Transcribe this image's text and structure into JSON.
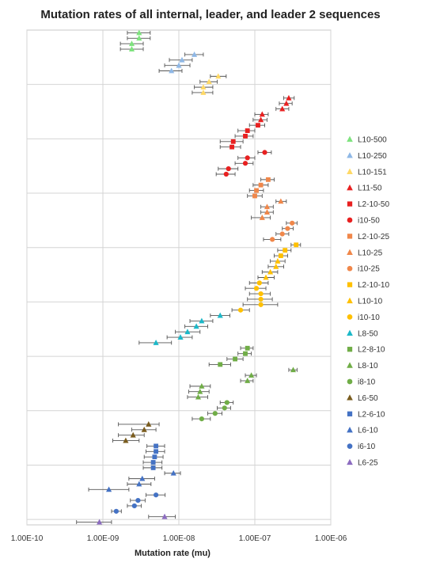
{
  "chart_data": {
    "type": "scatter",
    "title": "Mutation rates of all internal, leader, and leader 2 sequences",
    "xlabel": "Mutation rate (mu)",
    "ylabel": "",
    "x_scale": "log",
    "xlim": [
      1e-10,
      1e-06
    ],
    "x_tick_labels": [
      "1.00E-10",
      "1.00E-09",
      "1.00E-08",
      "1.00E-07",
      "1.00E-06"
    ],
    "grid": true,
    "legend": "right",
    "series": [
      {
        "name": "L10-500",
        "color": "#7ee37e",
        "marker": "triangle",
        "points": [
          {
            "x": 3e-09,
            "lo": 2.1e-09,
            "hi": 4.2e-09
          },
          {
            "x": 3e-09,
            "lo": 2.1e-09,
            "hi": 4.2e-09
          },
          {
            "x": 2.4e-09,
            "lo": 1.7e-09,
            "hi": 3.4e-09
          },
          {
            "x": 2.4e-09,
            "lo": 1.7e-09,
            "hi": 3.4e-09
          }
        ]
      },
      {
        "name": "L10-250",
        "color": "#8fb8e6",
        "marker": "triangle",
        "points": [
          {
            "x": 1.6e-08,
            "lo": 1.2e-08,
            "hi": 2.1e-08
          },
          {
            "x": 1.1e-08,
            "lo": 7.5e-09,
            "hi": 1.5e-08
          },
          {
            "x": 1e-08,
            "lo": 6.5e-09,
            "hi": 1.4e-08
          },
          {
            "x": 8e-09,
            "lo": 5.5e-09,
            "hi": 1.1e-08
          }
        ]
      },
      {
        "name": "L10-151",
        "color": "#ffd966",
        "marker": "triangle",
        "points": [
          {
            "x": 3.3e-08,
            "lo": 2.6e-08,
            "hi": 4.2e-08
          },
          {
            "x": 2.5e-08,
            "lo": 1.9e-08,
            "hi": 3.2e-08
          },
          {
            "x": 2.1e-08,
            "lo": 1.6e-08,
            "hi": 2.8e-08
          },
          {
            "x": 2.1e-08,
            "lo": 1.5e-08,
            "hi": 2.8e-08
          }
        ]
      },
      {
        "name": "L11-50",
        "color": "#e82020",
        "marker": "triangle",
        "points": [
          {
            "x": 2.8e-07,
            "lo": 2.4e-07,
            "hi": 3.3e-07
          },
          {
            "x": 2.6e-07,
            "lo": 2.1e-07,
            "hi": 3.1e-07
          },
          {
            "x": 2.3e-07,
            "lo": 1.9e-07,
            "hi": 2.8e-07
          },
          {
            "x": 1.25e-07,
            "lo": 1e-07,
            "hi": 1.5e-07
          },
          {
            "x": 1.2e-07,
            "lo": 9.5e-08,
            "hi": 1.45e-07
          }
        ]
      },
      {
        "name": "L2-10-50",
        "color": "#e82020",
        "marker": "square",
        "points": [
          {
            "x": 1.1e-07,
            "lo": 8.5e-08,
            "hi": 1.35e-07
          },
          {
            "x": 8e-08,
            "lo": 6e-08,
            "hi": 1e-07
          },
          {
            "x": 7.5e-08,
            "lo": 5.5e-08,
            "hi": 9.5e-08
          },
          {
            "x": 5.2e-08,
            "lo": 3.5e-08,
            "hi": 7e-08
          },
          {
            "x": 5e-08,
            "lo": 3.5e-08,
            "hi": 6.5e-08
          }
        ]
      },
      {
        "name": "i10-50",
        "color": "#e82020",
        "marker": "circle",
        "points": [
          {
            "x": 1.35e-07,
            "lo": 1.1e-07,
            "hi": 1.65e-07
          },
          {
            "x": 8e-08,
            "lo": 6e-08,
            "hi": 1e-07
          },
          {
            "x": 7.5e-08,
            "lo": 5.5e-08,
            "hi": 9.5e-08
          },
          {
            "x": 4.5e-08,
            "lo": 3.3e-08,
            "hi": 6e-08
          },
          {
            "x": 4.2e-08,
            "lo": 3.1e-08,
            "hi": 5.5e-08
          }
        ]
      },
      {
        "name": "L2-10-25",
        "color": "#f0874a",
        "marker": "square",
        "points": [
          {
            "x": 1.5e-07,
            "lo": 1.2e-07,
            "hi": 1.8e-07
          },
          {
            "x": 1.2e-07,
            "lo": 9.5e-08,
            "hi": 1.5e-07
          },
          {
            "x": 1.05e-07,
            "lo": 8.5e-08,
            "hi": 1.3e-07
          },
          {
            "x": 1e-07,
            "lo": 8e-08,
            "hi": 1.25e-07
          }
        ]
      },
      {
        "name": "L10-25",
        "color": "#f0874a",
        "marker": "triangle",
        "points": [
          {
            "x": 2.2e-07,
            "lo": 1.9e-07,
            "hi": 2.6e-07
          },
          {
            "x": 1.45e-07,
            "lo": 1.2e-07,
            "hi": 1.75e-07
          },
          {
            "x": 1.45e-07,
            "lo": 1.2e-07,
            "hi": 1.75e-07
          },
          {
            "x": 1.25e-07,
            "lo": 9e-08,
            "hi": 1.6e-07
          }
        ]
      },
      {
        "name": "i10-25",
        "color": "#f0874a",
        "marker": "circle",
        "points": [
          {
            "x": 3.1e-07,
            "lo": 2.6e-07,
            "hi": 3.6e-07
          },
          {
            "x": 2.7e-07,
            "lo": 2.3e-07,
            "hi": 3.2e-07
          },
          {
            "x": 2.3e-07,
            "lo": 1.9e-07,
            "hi": 2.8e-07
          },
          {
            "x": 1.7e-07,
            "lo": 1.3e-07,
            "hi": 2.2e-07
          }
        ]
      },
      {
        "name": "L2-10-10",
        "color": "#ffc000",
        "marker": "square",
        "points": [
          {
            "x": 3.5e-07,
            "lo": 3e-07,
            "hi": 4e-07
          },
          {
            "x": 2.5e-07,
            "lo": 2e-07,
            "hi": 3e-07
          },
          {
            "x": 2.2e-07,
            "lo": 1.8e-07,
            "hi": 2.7e-07
          }
        ]
      },
      {
        "name": "L10-10",
        "color": "#ffc000",
        "marker": "triangle",
        "points": [
          {
            "x": 2e-07,
            "lo": 1.6e-07,
            "hi": 2.5e-07
          },
          {
            "x": 1.9e-07,
            "lo": 1.5e-07,
            "hi": 2.4e-07
          },
          {
            "x": 1.6e-07,
            "lo": 1.25e-07,
            "hi": 2e-07
          },
          {
            "x": 1.4e-07,
            "lo": 1.1e-07,
            "hi": 1.8e-07
          }
        ]
      },
      {
        "name": "i10-10",
        "color": "#ffc000",
        "marker": "circle",
        "points": [
          {
            "x": 1.15e-07,
            "lo": 8.5e-08,
            "hi": 1.5e-07
          },
          {
            "x": 1.05e-07,
            "lo": 7.5e-08,
            "hi": 1.4e-07
          },
          {
            "x": 1.2e-07,
            "lo": 8.5e-08,
            "hi": 1.6e-07
          },
          {
            "x": 1.2e-07,
            "lo": 8e-08,
            "hi": 1.7e-07
          },
          {
            "x": 1.2e-07,
            "lo": 7e-08,
            "hi": 2e-07
          },
          {
            "x": 6.5e-08,
            "lo": 5e-08,
            "hi": 8.5e-08
          }
        ]
      },
      {
        "name": "L8-50",
        "color": "#1cb8c8",
        "marker": "triangle",
        "points": [
          {
            "x": 3.5e-08,
            "lo": 2.6e-08,
            "hi": 4.7e-08
          },
          {
            "x": 2e-08,
            "lo": 1.4e-08,
            "hi": 2.8e-08
          },
          {
            "x": 1.7e-08,
            "lo": 1.2e-08,
            "hi": 2.4e-08
          },
          {
            "x": 1.3e-08,
            "lo": 9e-09,
            "hi": 1.9e-08
          },
          {
            "x": 1.05e-08,
            "lo": 7e-09,
            "hi": 1.5e-08
          },
          {
            "x": 5e-09,
            "lo": 3e-09,
            "hi": 8e-09
          }
        ]
      },
      {
        "name": "L2-8-10",
        "color": "#70ad47",
        "marker": "square",
        "points": [
          {
            "x": 8e-08,
            "lo": 6.5e-08,
            "hi": 9.5e-08
          },
          {
            "x": 7.5e-08,
            "lo": 6e-08,
            "hi": 9e-08
          },
          {
            "x": 5.5e-08,
            "lo": 4.3e-08,
            "hi": 7e-08
          },
          {
            "x": 3.5e-08,
            "lo": 2.5e-08,
            "hi": 4.8e-08
          }
        ]
      },
      {
        "name": "L8-10",
        "color": "#70ad47",
        "marker": "triangle",
        "points": [
          {
            "x": 3.2e-07,
            "lo": 2.8e-07,
            "hi": 3.6e-07
          },
          {
            "x": 9e-08,
            "lo": 7.5e-08,
            "hi": 1.05e-07
          },
          {
            "x": 8e-08,
            "lo": 6.5e-08,
            "hi": 9.5e-08
          },
          {
            "x": 2e-08,
            "lo": 1.4e-08,
            "hi": 2.6e-08
          },
          {
            "x": 1.9e-08,
            "lo": 1.35e-08,
            "hi": 2.5e-08
          },
          {
            "x": 1.8e-08,
            "lo": 1.3e-08,
            "hi": 2.4e-08
          }
        ]
      },
      {
        "name": "i8-10",
        "color": "#70ad47",
        "marker": "circle",
        "points": [
          {
            "x": 4.3e-08,
            "lo": 3.5e-08,
            "hi": 5.2e-08
          },
          {
            "x": 4e-08,
            "lo": 3.2e-08,
            "hi": 4.8e-08
          },
          {
            "x": 3e-08,
            "lo": 2.4e-08,
            "hi": 3.7e-08
          },
          {
            "x": 2e-08,
            "lo": 1.5e-08,
            "hi": 2.6e-08
          }
        ]
      },
      {
        "name": "L6-50",
        "color": "#7a5c1e",
        "marker": "triangle",
        "points": [
          {
            "x": 4e-09,
            "lo": 1.6e-09,
            "hi": 5.5e-09
          },
          {
            "x": 3.5e-09,
            "lo": 2.4e-09,
            "hi": 5e-09
          },
          {
            "x": 2.5e-09,
            "lo": 1.6e-09,
            "hi": 3.5e-09
          },
          {
            "x": 2e-09,
            "lo": 1.35e-09,
            "hi": 3e-09
          }
        ]
      },
      {
        "name": "L2-6-10",
        "color": "#4472c4",
        "marker": "square",
        "points": [
          {
            "x": 5e-09,
            "lo": 3.8e-09,
            "hi": 6.5e-09
          },
          {
            "x": 5e-09,
            "lo": 3.7e-09,
            "hi": 6.5e-09
          },
          {
            "x": 4.8e-09,
            "lo": 3.5e-09,
            "hi": 6.2e-09
          },
          {
            "x": 4.6e-09,
            "lo": 3.4e-09,
            "hi": 6e-09
          },
          {
            "x": 4.6e-09,
            "lo": 3.4e-09,
            "hi": 6e-09
          }
        ]
      },
      {
        "name": "L6-10",
        "color": "#4472c4",
        "marker": "triangle",
        "points": [
          {
            "x": 8.5e-09,
            "lo": 6.5e-09,
            "hi": 1.05e-08
          },
          {
            "x": 3.3e-09,
            "lo": 2.2e-09,
            "hi": 4.8e-09
          },
          {
            "x": 3e-09,
            "lo": 2.1e-09,
            "hi": 4.3e-09
          },
          {
            "x": 1.2e-09,
            "lo": 6.5e-10,
            "hi": 2.2e-09
          }
        ]
      },
      {
        "name": "i6-10",
        "color": "#4472c4",
        "marker": "circle",
        "points": [
          {
            "x": 5e-09,
            "lo": 3.7e-09,
            "hi": 6.6e-09
          },
          {
            "x": 2.9e-09,
            "lo": 2.3e-09,
            "hi": 3.6e-09
          },
          {
            "x": 2.6e-09,
            "lo": 2.1e-09,
            "hi": 3.2e-09
          },
          {
            "x": 1.5e-09,
            "lo": 1.3e-09,
            "hi": 1.75e-09
          }
        ]
      },
      {
        "name": "L6-25",
        "color": "#8c6cc0",
        "marker": "triangle",
        "points": [
          {
            "x": 6.5e-09,
            "lo": 4e-09,
            "hi": 9e-09
          },
          {
            "x": 9e-10,
            "lo": 4.5e-10,
            "hi": 1.3e-09
          }
        ]
      }
    ]
  }
}
